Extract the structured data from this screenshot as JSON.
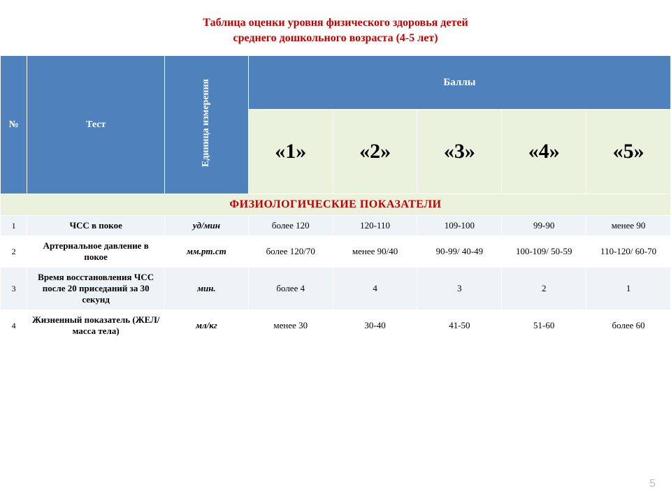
{
  "title_line1": "Таблица оценки уровня физического здоровья детей",
  "title_line2": "среднего дошкольного возраста (4-5 лет)",
  "headers": {
    "num": "№",
    "test": "Тест",
    "unit": "Единица измерения",
    "scores_title": "Баллы",
    "scores": [
      "«1»",
      "«2»",
      "«3»",
      "«4»",
      "«5»"
    ]
  },
  "section": "ФИЗИОЛОГИЧЕСКИЕ ПОКАЗАТЕЛИ",
  "rows": [
    {
      "n": "1",
      "test": "ЧСС в покое",
      "unit": "уд/мин",
      "v": [
        "более 120",
        "120-110",
        "109-100",
        "99-90",
        "менее 90"
      ]
    },
    {
      "n": "2",
      "test": "Артериальное давление в покое",
      "unit": "мм.рт.ст",
      "v": [
        "более 120/70",
        "менее 90/40",
        "90-99/ 40-49",
        "100-109/ 50-59",
        "110-120/ 60-70"
      ]
    },
    {
      "n": "3",
      "test": "Время восстановления ЧСС после 20 приседаний за 30 секунд",
      "unit": "мин.",
      "v": [
        "более 4",
        "4",
        "3",
        "2",
        "1"
      ]
    },
    {
      "n": "4",
      "test": "Жизненный показатель (ЖЕЛ/масса тела)",
      "unit": "мл/кг",
      "v": [
        "менее 30",
        "30-40",
        "41-50",
        "51-60",
        "более 60"
      ]
    }
  ],
  "page_number": "5",
  "colors": {
    "title": "#c00000",
    "header_bg": "#4f81bd",
    "header_text": "#ffffff",
    "score_bg": "#eaf1dd",
    "section_bg": "#eaf1dd",
    "section_text": "#c00000",
    "row_a": "#eef3f8",
    "row_b": "#ffffff",
    "pagenum": "#bfbfbf"
  }
}
